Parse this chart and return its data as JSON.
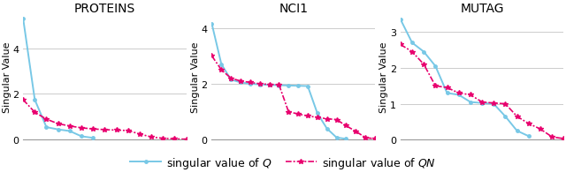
{
  "datasets": {
    "PROTEINS": {
      "Q": [
        5.3,
        1.75,
        0.55,
        0.45,
        0.38,
        0.15,
        0.08
      ],
      "QN": [
        1.75,
        1.2,
        0.9,
        0.7,
        0.6,
        0.52,
        0.47,
        0.44,
        0.42,
        0.4,
        0.25,
        0.12,
        0.06,
        0.04,
        0.02
      ]
    },
    "NCI1": {
      "Q": [
        4.15,
        2.7,
        2.15,
        2.05,
        2.0,
        1.98,
        1.96,
        1.95,
        1.94,
        1.93,
        1.92,
        0.95,
        0.4,
        0.08,
        0.03
      ],
      "QN": [
        3.0,
        2.5,
        2.2,
        2.1,
        2.05,
        2.0,
        1.98,
        1.97,
        1.0,
        0.92,
        0.85,
        0.8,
        0.75,
        0.72,
        0.5,
        0.3,
        0.08,
        0.03
      ]
    },
    "MUTAG": {
      "Q": [
        3.35,
        2.7,
        2.45,
        2.05,
        1.3,
        1.25,
        1.05,
        1.02,
        1.0,
        0.65,
        0.25,
        0.1
      ],
      "QN": [
        2.65,
        2.45,
        2.1,
        1.5,
        1.45,
        1.3,
        1.25,
        1.05,
        1.02,
        1.0,
        0.65,
        0.45,
        0.3,
        0.08,
        0.03
      ]
    }
  },
  "ylims": {
    "PROTEINS": [
      0,
      5.5
    ],
    "NCI1": [
      0,
      4.5
    ],
    "MUTAG": [
      0,
      3.5
    ]
  },
  "yticks": {
    "PROTEINS": [
      0,
      2,
      4
    ],
    "NCI1": [
      0,
      2,
      4
    ],
    "MUTAG": [
      0,
      1,
      2,
      3
    ]
  },
  "color_Q": "#78C8E6",
  "color_QN": "#E8006E",
  "background_color": "#ffffff",
  "grid_color": "#cccccc",
  "title_fontsize": 10,
  "label_fontsize": 8,
  "legend_fontsize": 9
}
